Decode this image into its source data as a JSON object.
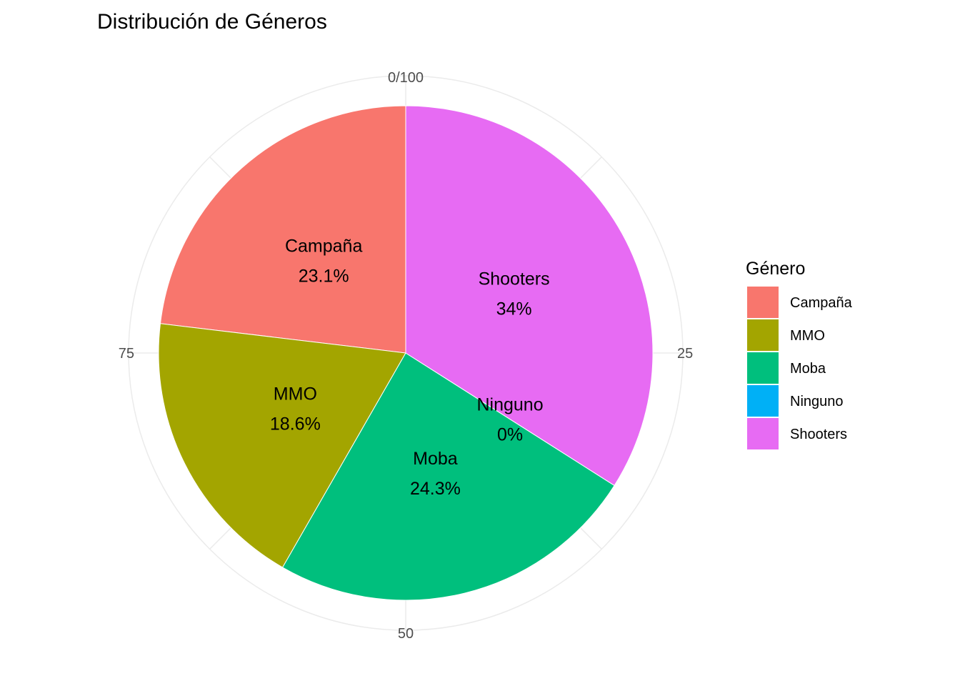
{
  "chart_data": {
    "type": "pie",
    "title": "Distribución de Géneros",
    "categories": [
      "Campaña",
      "MMO",
      "Moba",
      "Ninguno",
      "Shooters"
    ],
    "values": [
      23.1,
      18.6,
      24.3,
      0,
      34
    ],
    "value_labels": [
      "23.1%",
      "18.6%",
      "24.3%",
      "0%",
      "34%"
    ],
    "colors": [
      "#F8766D",
      "#A3A500",
      "#00BF7D",
      "#00B0F6",
      "#E76BF3"
    ],
    "legend": {
      "title": "Género",
      "position": "right"
    },
    "polar_axis": {
      "range": [
        0,
        100
      ],
      "ticks": [
        "0/100",
        "25",
        "50",
        "75"
      ]
    },
    "grid": true
  }
}
